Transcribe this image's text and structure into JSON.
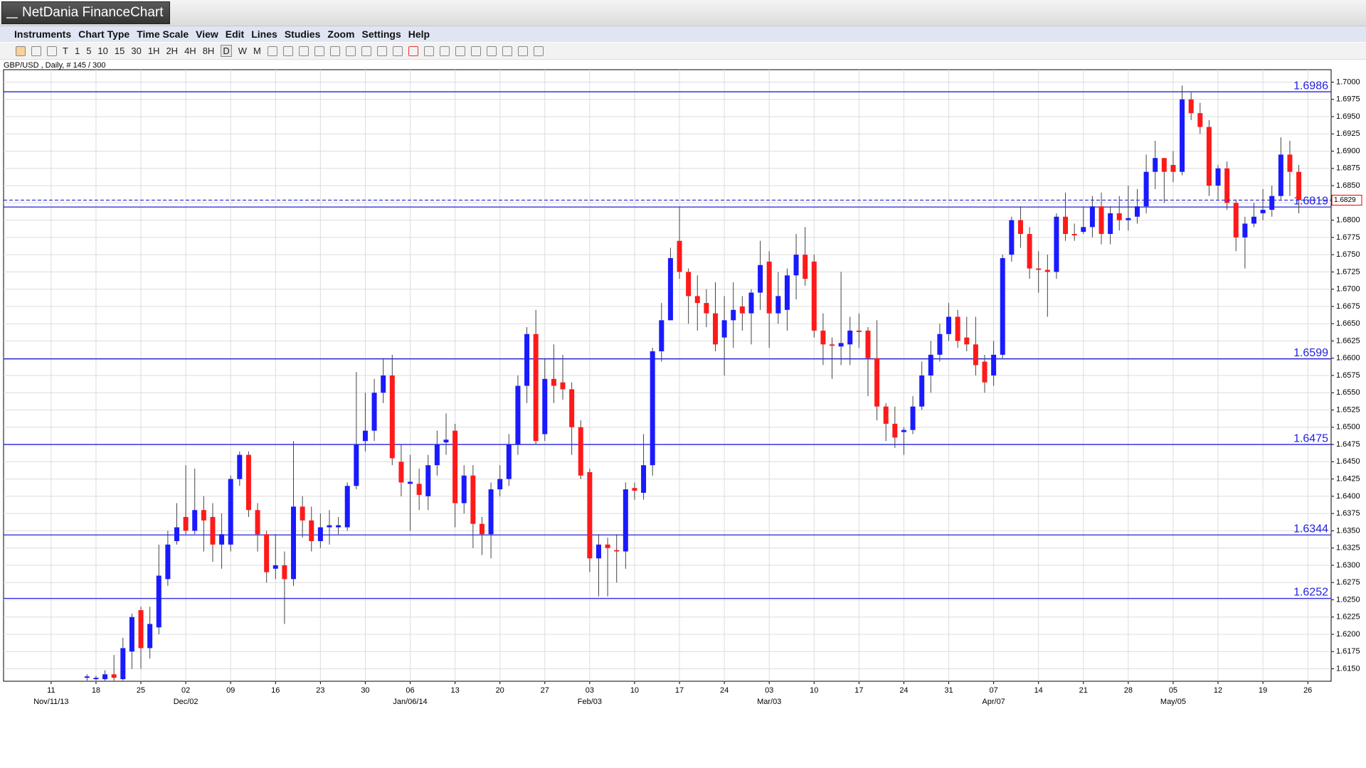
{
  "window": {
    "title": "NetDania FinanceChart",
    "menu": [
      "Instruments",
      "Chart Type",
      "Time Scale",
      "View",
      "Edit",
      "Lines",
      "Studies",
      "Zoom",
      "Settings",
      "Help"
    ],
    "toolbar": [
      "T",
      "1",
      "5",
      "10",
      "15",
      "30",
      "1H",
      "2H",
      "4H",
      "8H",
      "D",
      "W",
      "M"
    ]
  },
  "chart_data": {
    "type": "candlestick",
    "subtitle": "GBP/USD , Daily, # 145 / 300",
    "up_color": "#1a1aff",
    "down_color": "#ff1a1a",
    "grid": true,
    "xlim": [
      -9.3,
      138.6
    ],
    "ylim": [
      1.6132,
      1.7018
    ],
    "xticks": [
      {
        "value": -4,
        "label": "11"
      },
      {
        "value": 1,
        "label": "18"
      },
      {
        "value": 6,
        "label": "25"
      },
      {
        "value": 11,
        "label": "02"
      },
      {
        "value": 16,
        "label": "09"
      },
      {
        "value": 21,
        "label": "16"
      },
      {
        "value": 26,
        "label": "23"
      },
      {
        "value": 31,
        "label": "30"
      },
      {
        "value": 36,
        "label": "06"
      },
      {
        "value": 41,
        "label": "13"
      },
      {
        "value": 46,
        "label": "20"
      },
      {
        "value": 51,
        "label": "27"
      },
      {
        "value": 56,
        "label": "03"
      },
      {
        "value": 61,
        "label": "10"
      },
      {
        "value": 66,
        "label": "17"
      },
      {
        "value": 71,
        "label": "24"
      },
      {
        "value": 76,
        "label": "03"
      },
      {
        "value": 81,
        "label": "10"
      },
      {
        "value": 86,
        "label": "17"
      },
      {
        "value": 91,
        "label": "24"
      },
      {
        "value": 96,
        "label": "31"
      },
      {
        "value": 101,
        "label": "07"
      },
      {
        "value": 106,
        "label": "14"
      },
      {
        "value": 111,
        "label": "21"
      },
      {
        "value": 116,
        "label": "28"
      },
      {
        "value": 121,
        "label": "05"
      },
      {
        "value": 126,
        "label": "12"
      },
      {
        "value": 131,
        "label": "19"
      },
      {
        "value": 136,
        "label": "26"
      }
    ],
    "month_ticks": [
      {
        "value": -4,
        "label": "Nov/11/13"
      },
      {
        "value": 11,
        "label": "Dec/02"
      },
      {
        "value": 36,
        "label": "Jan/06/14"
      },
      {
        "value": 56,
        "label": "Feb/03"
      },
      {
        "value": 76,
        "label": "Mar/03"
      },
      {
        "value": 101,
        "label": "Apr/07"
      },
      {
        "value": 121,
        "label": "May/05"
      }
    ],
    "yticks": [
      {
        "value": 1.7,
        "label": "1.7000"
      },
      1.6975,
      {
        "value": 1.695,
        "label": "1.6950"
      },
      1.6925,
      {
        "value": 1.69,
        "label": "1.6900"
      },
      1.6875,
      {
        "value": 1.685,
        "label": "1.6850"
      },
      1.6825,
      {
        "value": 1.68,
        "label": "1.6800"
      },
      1.6775,
      {
        "value": 1.675,
        "label": "1.6750"
      },
      1.6725,
      {
        "value": 1.67,
        "label": "1.6700"
      },
      1.6675,
      {
        "value": 1.665,
        "label": "1.6650"
      },
      1.6625,
      {
        "value": 1.66,
        "label": "1.6600"
      },
      1.6575,
      {
        "value": 1.655,
        "label": "1.6550"
      },
      1.6525,
      {
        "value": 1.65,
        "label": "1.6500"
      },
      1.6475,
      {
        "value": 1.645,
        "label": "1.6450"
      },
      1.6425,
      {
        "value": 1.64,
        "label": "1.6400"
      },
      1.6375,
      {
        "value": 1.635,
        "label": "1.6350"
      },
      1.6325,
      {
        "value": 1.63,
        "label": "1.6300"
      },
      1.6275,
      {
        "value": 1.625,
        "label": "1.6250"
      },
      1.6225,
      {
        "value": 1.62,
        "label": "1.6200"
      },
      1.6175,
      {
        "value": 1.615,
        "label": "1.6150"
      }
    ],
    "hlines": [
      1.6986,
      1.6819,
      1.6599,
      1.6475,
      1.6344,
      1.6252
    ],
    "hline_color": "#2222dd",
    "last_price": 1.6829,
    "ohlc": [
      [
        1.6137,
        1.6142,
        1.6133,
        1.6139
      ],
      [
        1.6135,
        1.614,
        1.6133,
        1.6137
      ],
      [
        1.6135,
        1.6148,
        1.6133,
        1.6142
      ],
      [
        1.6142,
        1.617,
        1.6133,
        1.6137
      ],
      [
        1.6135,
        1.6195,
        1.6133,
        1.618
      ],
      [
        1.6175,
        1.623,
        1.615,
        1.6225
      ],
      [
        1.6235,
        1.624,
        1.615,
        1.618
      ],
      [
        1.618,
        1.624,
        1.6165,
        1.6215
      ],
      [
        1.621,
        1.633,
        1.62,
        1.6285
      ],
      [
        1.628,
        1.635,
        1.627,
        1.633
      ],
      [
        1.6335,
        1.639,
        1.633,
        1.6355
      ],
      [
        1.637,
        1.6445,
        1.6345,
        1.635
      ],
      [
        1.635,
        1.644,
        1.6345,
        1.638
      ],
      [
        1.638,
        1.64,
        1.632,
        1.6365
      ],
      [
        1.637,
        1.639,
        1.6305,
        1.633
      ],
      [
        1.633,
        1.6375,
        1.6295,
        1.6345
      ],
      [
        1.633,
        1.643,
        1.632,
        1.6425
      ],
      [
        1.6425,
        1.6465,
        1.6415,
        1.646
      ],
      [
        1.646,
        1.6465,
        1.637,
        1.638
      ],
      [
        1.638,
        1.639,
        1.632,
        1.6345
      ],
      [
        1.6345,
        1.635,
        1.6275,
        1.629
      ],
      [
        1.6295,
        1.6345,
        1.628,
        1.63
      ],
      [
        1.63,
        1.632,
        1.6215,
        1.628
      ],
      [
        1.628,
        1.648,
        1.627,
        1.6385
      ],
      [
        1.6385,
        1.64,
        1.634,
        1.6365
      ],
      [
        1.6365,
        1.6385,
        1.632,
        1.6335
      ],
      [
        1.6335,
        1.6375,
        1.6325,
        1.6355
      ],
      [
        1.6355,
        1.638,
        1.633,
        1.6358
      ],
      [
        1.6355,
        1.637,
        1.6345,
        1.6358
      ],
      [
        1.6355,
        1.642,
        1.635,
        1.6415
      ],
      [
        1.6415,
        1.658,
        1.641,
        1.6475
      ],
      [
        1.648,
        1.655,
        1.6465,
        1.6495
      ],
      [
        1.6495,
        1.657,
        1.648,
        1.655
      ],
      [
        1.655,
        1.66,
        1.6535,
        1.6575
      ],
      [
        1.6575,
        1.6605,
        1.6445,
        1.6455
      ],
      [
        1.645,
        1.6475,
        1.64,
        1.642
      ],
      [
        1.6418,
        1.646,
        1.635,
        1.6421
      ],
      [
        1.6418,
        1.644,
        1.638,
        1.6402
      ],
      [
        1.64,
        1.646,
        1.638,
        1.6445
      ],
      [
        1.6445,
        1.6495,
        1.643,
        1.6475
      ],
      [
        1.6478,
        1.652,
        1.646,
        1.6482
      ],
      [
        1.6495,
        1.6505,
        1.6355,
        1.639
      ],
      [
        1.639,
        1.6445,
        1.6375,
        1.643
      ],
      [
        1.643,
        1.6445,
        1.6325,
        1.636
      ],
      [
        1.636,
        1.637,
        1.6315,
        1.6345
      ],
      [
        1.6345,
        1.642,
        1.631,
        1.641
      ],
      [
        1.641,
        1.6445,
        1.64,
        1.6425
      ],
      [
        1.6425,
        1.649,
        1.6415,
        1.6475
      ],
      [
        1.6475,
        1.6575,
        1.646,
        1.656
      ],
      [
        1.656,
        1.6645,
        1.6535,
        1.6635
      ],
      [
        1.6635,
        1.667,
        1.6475,
        1.648
      ],
      [
        1.649,
        1.66,
        1.648,
        1.657
      ],
      [
        1.657,
        1.662,
        1.6535,
        1.656
      ],
      [
        1.6565,
        1.6605,
        1.654,
        1.6555
      ],
      [
        1.6555,
        1.6565,
        1.646,
        1.65
      ],
      [
        1.65,
        1.651,
        1.6425,
        1.643
      ],
      [
        1.6435,
        1.644,
        1.629,
        1.631
      ],
      [
        1.631,
        1.6345,
        1.6255,
        1.633
      ],
      [
        1.633,
        1.634,
        1.6255,
        1.6325
      ],
      [
        1.6322,
        1.6345,
        1.6275,
        1.632
      ],
      [
        1.632,
        1.642,
        1.6295,
        1.641
      ],
      [
        1.6412,
        1.642,
        1.6395,
        1.6408
      ],
      [
        1.6405,
        1.649,
        1.6395,
        1.6445
      ],
      [
        1.6445,
        1.6615,
        1.643,
        1.661
      ],
      [
        1.661,
        1.668,
        1.6595,
        1.6655
      ],
      [
        1.6655,
        1.676,
        1.6655,
        1.6745
      ],
      [
        1.677,
        1.682,
        1.6715,
        1.6725
      ],
      [
        1.6725,
        1.673,
        1.665,
        1.669
      ],
      [
        1.669,
        1.672,
        1.664,
        1.668
      ],
      [
        1.668,
        1.67,
        1.6645,
        1.6665
      ],
      [
        1.6665,
        1.671,
        1.661,
        1.662
      ],
      [
        1.663,
        1.669,
        1.6575,
        1.6655
      ],
      [
        1.6655,
        1.671,
        1.6615,
        1.667
      ],
      [
        1.6675,
        1.669,
        1.664,
        1.6665
      ],
      [
        1.6665,
        1.67,
        1.662,
        1.6695
      ],
      [
        1.6695,
        1.677,
        1.667,
        1.6735
      ],
      [
        1.674,
        1.6755,
        1.6615,
        1.6665
      ],
      [
        1.6665,
        1.6725,
        1.665,
        1.669
      ],
      [
        1.667,
        1.673,
        1.664,
        1.672
      ],
      [
        1.672,
        1.678,
        1.6685,
        1.675
      ],
      [
        1.675,
        1.679,
        1.6705,
        1.6715
      ],
      [
        1.674,
        1.675,
        1.663,
        1.664
      ],
      [
        1.664,
        1.6665,
        1.659,
        1.662
      ],
      [
        1.662,
        1.663,
        1.657,
        1.6618
      ],
      [
        1.6617,
        1.6725,
        1.659,
        1.6622
      ],
      [
        1.662,
        1.666,
        1.659,
        1.664
      ],
      [
        1.664,
        1.6665,
        1.6615,
        1.6638
      ],
      [
        1.664,
        1.6645,
        1.6545,
        1.66
      ],
      [
        1.66,
        1.6655,
        1.651,
        1.653
      ],
      [
        1.653,
        1.6535,
        1.648,
        1.6505
      ],
      [
        1.6505,
        1.653,
        1.647,
        1.6485
      ],
      [
        1.6493,
        1.65,
        1.646,
        1.6496
      ],
      [
        1.6496,
        1.6545,
        1.649,
        1.653
      ],
      [
        1.653,
        1.6595,
        1.6525,
        1.6575
      ],
      [
        1.6575,
        1.6625,
        1.655,
        1.6605
      ],
      [
        1.6605,
        1.665,
        1.6595,
        1.6635
      ],
      [
        1.6635,
        1.668,
        1.6625,
        1.666
      ],
      [
        1.666,
        1.667,
        1.6615,
        1.6625
      ],
      [
        1.663,
        1.666,
        1.661,
        1.662
      ],
      [
        1.662,
        1.666,
        1.6575,
        1.659
      ],
      [
        1.6595,
        1.6605,
        1.655,
        1.6565
      ],
      [
        1.6575,
        1.6625,
        1.656,
        1.6605
      ],
      [
        1.6605,
        1.675,
        1.66,
        1.6745
      ],
      [
        1.675,
        1.6805,
        1.674,
        1.68
      ],
      [
        1.68,
        1.682,
        1.676,
        1.678
      ],
      [
        1.678,
        1.679,
        1.6715,
        1.673
      ],
      [
        1.673,
        1.6755,
        1.6695,
        1.6728
      ],
      [
        1.6728,
        1.675,
        1.666,
        1.6725
      ],
      [
        1.6725,
        1.681,
        1.6715,
        1.6805
      ],
      [
        1.6805,
        1.684,
        1.677,
        1.678
      ],
      [
        1.678,
        1.6795,
        1.677,
        1.6778
      ],
      [
        1.6783,
        1.682,
        1.678,
        1.679
      ],
      [
        1.679,
        1.6835,
        1.6775,
        1.682
      ],
      [
        1.682,
        1.684,
        1.6765,
        1.678
      ],
      [
        1.678,
        1.682,
        1.6765,
        1.681
      ],
      [
        1.681,
        1.6835,
        1.6785,
        1.68
      ],
      [
        1.68,
        1.685,
        1.6785,
        1.6803
      ],
      [
        1.6805,
        1.6845,
        1.6795,
        1.682
      ],
      [
        1.682,
        1.6895,
        1.681,
        1.687
      ],
      [
        1.687,
        1.6915,
        1.6845,
        1.689
      ],
      [
        1.689,
        1.689,
        1.6825,
        1.687
      ],
      [
        1.688,
        1.69,
        1.6855,
        1.687
      ],
      [
        1.687,
        1.6995,
        1.6865,
        1.6975
      ],
      [
        1.6975,
        1.6985,
        1.6945,
        1.6955
      ],
      [
        1.6955,
        1.697,
        1.6925,
        1.6935
      ],
      [
        1.6935,
        1.6945,
        1.6835,
        1.685
      ],
      [
        1.685,
        1.688,
        1.683,
        1.6875
      ],
      [
        1.6875,
        1.6885,
        1.6815,
        1.6825
      ],
      [
        1.6825,
        1.683,
        1.6755,
        1.6775
      ],
      [
        1.6775,
        1.6805,
        1.673,
        1.6795
      ],
      [
        1.6795,
        1.6825,
        1.679,
        1.6805
      ],
      [
        1.681,
        1.6845,
        1.68,
        1.6815
      ],
      [
        1.6815,
        1.685,
        1.6805,
        1.6835
      ],
      [
        1.6835,
        1.692,
        1.683,
        1.6895
      ],
      [
        1.6895,
        1.6915,
        1.6835,
        1.687
      ],
      [
        1.687,
        1.688,
        1.681,
        1.6829
      ]
    ]
  }
}
